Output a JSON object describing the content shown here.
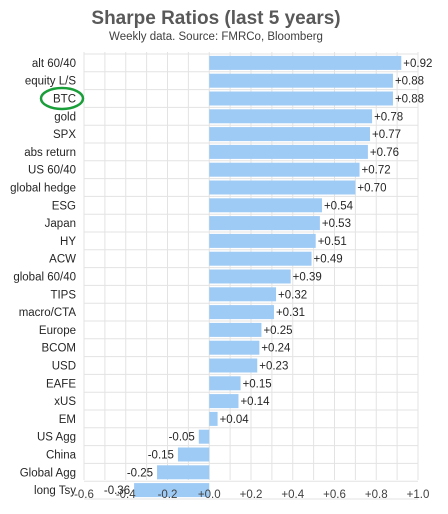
{
  "chart_data": {
    "type": "bar",
    "orientation": "horizontal",
    "title": "Sharpe Ratios (last 5 years)",
    "subtitle": "Weekly data.  Source: FMRCo, Bloomberg",
    "categories": [
      "alt 60/40",
      "equity L/S",
      "BTC",
      "gold",
      "SPX",
      "abs return",
      "US 60/40",
      "global hedge",
      "ESG",
      "Japan",
      "HY",
      "ACW",
      "global 60/40",
      "TIPS",
      "macro/CTA",
      "Europe",
      "BCOM",
      "USD",
      "EAFE",
      "xUS",
      "EM",
      "US Agg",
      "China",
      "Global Agg",
      "long Tsy"
    ],
    "values": [
      0.92,
      0.88,
      0.88,
      0.78,
      0.77,
      0.76,
      0.72,
      0.7,
      0.54,
      0.53,
      0.51,
      0.49,
      0.39,
      0.32,
      0.31,
      0.25,
      0.24,
      0.23,
      0.15,
      0.14,
      0.04,
      -0.05,
      -0.15,
      -0.25,
      -0.36
    ],
    "value_labels": [
      "+0.92",
      "+0.88",
      "+0.88",
      "+0.78",
      "+0.77",
      "+0.76",
      "+0.72",
      "+0.70",
      "+0.54",
      "+0.53",
      "+0.51",
      "+0.49",
      "+0.39",
      "+0.32",
      "+0.31",
      "+0.25",
      "+0.24",
      "+0.23",
      "+0.15",
      "+0.14",
      "+0.04",
      "-0.05",
      "-0.15",
      "-0.25",
      "-0.36"
    ],
    "xlim": [
      -0.6,
      1.0
    ],
    "xticks": [
      -0.6,
      -0.4,
      -0.2,
      0.0,
      0.2,
      0.4,
      0.6,
      0.8,
      1.0
    ],
    "xtick_labels": [
      "-0.6",
      "-0.4",
      "-0.2",
      "+0.0",
      "+0.2",
      "+0.4",
      "+0.6",
      "+0.8",
      "+1.0"
    ],
    "grid": true,
    "highlight": {
      "category": "BTC",
      "shape": "ellipse",
      "color": "#1a9e3a"
    },
    "colors": {
      "bar": "#9ecbf5",
      "grid": "#e3e3e3"
    }
  }
}
